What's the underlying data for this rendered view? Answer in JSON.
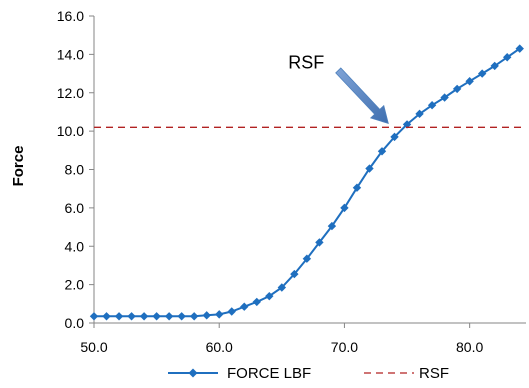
{
  "chart_data": {
    "type": "line",
    "title": "",
    "xlabel": "",
    "ylabel": "Force",
    "xlim": [
      50.0,
      84.5
    ],
    "ylim": [
      0.0,
      16.0
    ],
    "x_ticks": [
      "50.0",
      "60.0",
      "70.0",
      "80.0"
    ],
    "x_tick_values": [
      50,
      60,
      70,
      80
    ],
    "y_ticks": [
      "0.0",
      "2.0",
      "4.0",
      "6.0",
      "8.0",
      "10.0",
      "12.0",
      "14.0",
      "16.0"
    ],
    "y_tick_values": [
      0,
      2,
      4,
      6,
      8,
      10,
      12,
      14,
      16
    ],
    "grid": false,
    "legend_position": "bottom",
    "series": [
      {
        "name": "FORCE LBF",
        "color": "#1f6fbf",
        "marker": "diamond",
        "x": [
          50,
          51,
          52,
          53,
          54,
          55,
          56,
          57,
          58,
          59,
          60,
          61,
          62,
          63,
          64,
          65,
          66,
          67,
          68,
          69,
          70,
          71,
          72,
          73,
          74,
          75,
          76,
          77,
          78,
          79,
          80,
          81,
          82,
          83,
          84
        ],
        "values": [
          0.35,
          0.35,
          0.35,
          0.35,
          0.35,
          0.35,
          0.35,
          0.35,
          0.35,
          0.4,
          0.45,
          0.6,
          0.85,
          1.1,
          1.4,
          1.85,
          2.55,
          3.35,
          4.2,
          5.05,
          6.0,
          7.05,
          8.05,
          8.95,
          9.7,
          10.35,
          10.9,
          11.35,
          11.75,
          12.2,
          12.6,
          13.0,
          13.4,
          13.85,
          14.3
        ]
      },
      {
        "name": "RSF",
        "color": "#b22222",
        "style": "dashed",
        "x": [
          50.0,
          84.5
        ],
        "values": [
          10.2,
          10.2
        ]
      }
    ],
    "annotations": [
      {
        "text": "RSF",
        "arrow_x": 73.5,
        "arrow_y": 10.4,
        "color": "#4f81bd"
      }
    ]
  }
}
